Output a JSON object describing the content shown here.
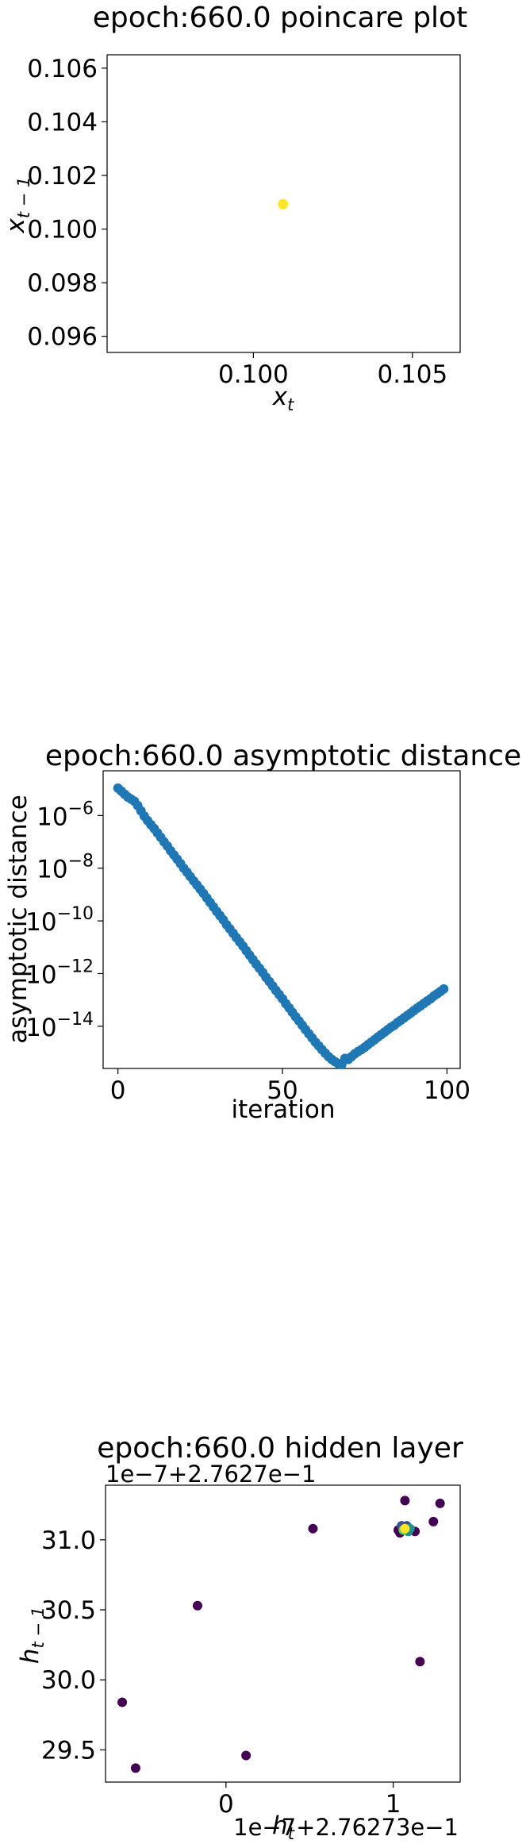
{
  "chart_data": [
    {
      "type": "scatter",
      "title": "epoch:660.0 poincare plot",
      "xlabel": "x",
      "xlabel_sub": "t",
      "ylabel": "x",
      "ylabel_sub": "t − 1",
      "xlim": [
        0.0954,
        0.1065
      ],
      "ylim": [
        0.0954,
        0.1065
      ],
      "x_ticks": [
        0.1,
        0.105
      ],
      "x_tick_labels": [
        "0.100",
        "0.105"
      ],
      "y_ticks": [
        0.096,
        0.098,
        0.1,
        0.102,
        0.104,
        0.106
      ],
      "y_tick_labels": [
        "0.096",
        "0.098",
        "0.100",
        "0.102",
        "0.104",
        "0.106"
      ],
      "color": "#fde725",
      "points": [
        {
          "x": 0.10093,
          "y": 0.10093
        }
      ]
    },
    {
      "type": "scatter",
      "title": "epoch:660.0 asymptotic distance",
      "xlabel": "iteration",
      "ylabel": "asymptotic distance",
      "y_scale": "log",
      "xlim": [
        -4.5,
        104
      ],
      "ylim": [
        2.5e-16,
        5e-05
      ],
      "x_ticks": [
        0,
        50,
        100
      ],
      "x_tick_labels": [
        "0",
        "50",
        "100"
      ],
      "y_tick_exponents": [
        -6,
        -8,
        -10,
        -12,
        -14
      ],
      "y_tick_base": "10",
      "color": "#1f77b4",
      "x": [
        0,
        1,
        2,
        3,
        4,
        5,
        6,
        7,
        8,
        9,
        10,
        11,
        12,
        13,
        14,
        15,
        16,
        17,
        18,
        19,
        20,
        21,
        22,
        23,
        24,
        25,
        26,
        27,
        28,
        29,
        30,
        31,
        32,
        33,
        34,
        35,
        36,
        37,
        38,
        39,
        40,
        41,
        42,
        43,
        44,
        45,
        46,
        47,
        48,
        49,
        50,
        51,
        52,
        53,
        54,
        55,
        56,
        57,
        58,
        59,
        60,
        61,
        62,
        63,
        64,
        65,
        66,
        67,
        68,
        69,
        70,
        71,
        72,
        73,
        74,
        75,
        76,
        77,
        78,
        79,
        80,
        81,
        82,
        83,
        84,
        85,
        86,
        87,
        88,
        89,
        90,
        91,
        92,
        93,
        94,
        95,
        96,
        97,
        98,
        99
      ],
      "y": [
        1.1e-05,
        8.5e-06,
        6.5e-06,
        5e-06,
        4.2e-06,
        3.5e-06,
        2.4e-06,
        1.5e-06,
        9.5e-07,
        6.5e-07,
        4.5e-07,
        3.2e-07,
        2.2e-07,
        1.5e-07,
        1e-07,
        7e-08,
        4.6e-08,
        3.2e-08,
        2.2e-08,
        1.5e-08,
        1e-08,
        7e-09,
        4.8e-09,
        3.3e-09,
        2.3e-09,
        1.6e-09,
        1.1e-09,
        7.5e-10,
        5e-10,
        3.4e-10,
        2.3e-10,
        1.6e-10,
        1.1e-10,
        7.2e-11,
        5e-11,
        3.4e-11,
        2.3e-11,
        1.6e-11,
        1.1e-11,
        7.4e-12,
        5e-12,
        3.4e-12,
        2.3e-12,
        1.6e-12,
        1.1e-12,
        7.2e-13,
        5e-13,
        3.4e-13,
        2.3e-13,
        1.6e-13,
        1.1e-13,
        7.2e-14,
        5e-14,
        3.4e-14,
        2.3e-14,
        1.6e-14,
        1.1e-14,
        7.5e-15,
        5.2e-15,
        3.6e-15,
        2.5e-15,
        1.8e-15,
        1.3e-15,
        9.5e-16,
        7e-16,
        5.5e-16,
        4.5e-16,
        3.8e-16,
        3.5e-16,
        6e-16,
        5.5e-16,
        7e-16,
        9e-16,
        1.1e-15,
        1.3e-15,
        1.6e-15,
        2e-15,
        2.5e-15,
        3.1e-15,
        3.9e-15,
        4.8e-15,
        6e-15,
        7.4e-15,
        9.2e-15,
        1.1e-14,
        1.4e-14,
        1.7e-14,
        2.1e-14,
        2.6e-14,
        3.2e-14,
        4e-14,
        4.9e-14,
        6e-14,
        7.4e-14,
        9.1e-14,
        1.1e-13,
        1.4e-13,
        1.7e-13,
        2.1e-13,
        2.6e-13
      ]
    },
    {
      "type": "scatter",
      "title": "epoch:660.0 hidden layer",
      "xlabel": "h",
      "xlabel_sub": "t",
      "ylabel": "h",
      "ylabel_sub": "t − 1",
      "x_offset_text": "1e−7+2.76273e−1",
      "y_offset_text": "1e−7+2.7627e−1",
      "xlim": [
        -0.72,
        1.4
      ],
      "ylim": [
        29.27,
        31.39
      ],
      "x_ticks": [
        0,
        1
      ],
      "x_tick_labels": [
        "0",
        "1"
      ],
      "y_ticks": [
        29.5,
        30.0,
        30.5,
        31.0
      ],
      "y_tick_labels": [
        "29.5",
        "30.0",
        "30.5",
        "31.0"
      ],
      "colormap": [
        "#440154",
        "#3b528b",
        "#21918c",
        "#5ec962",
        "#fde725"
      ],
      "points": [
        {
          "x": -0.62,
          "y": 29.84,
          "c": 0.0
        },
        {
          "x": -0.54,
          "y": 29.37,
          "c": 0.0
        },
        {
          "x": -0.17,
          "y": 30.53,
          "c": 0.0
        },
        {
          "x": 0.12,
          "y": 29.46,
          "c": 0.0
        },
        {
          "x": 0.52,
          "y": 31.08,
          "c": 0.0
        },
        {
          "x": 1.16,
          "y": 30.13,
          "c": 0.0
        },
        {
          "x": 1.28,
          "y": 31.26,
          "c": 0.0
        },
        {
          "x": 1.24,
          "y": 31.13,
          "c": 0.0
        },
        {
          "x": 1.07,
          "y": 31.28,
          "c": 0.0
        },
        {
          "x": 1.13,
          "y": 31.06,
          "c": 0.0
        },
        {
          "x": 1.04,
          "y": 31.05,
          "c": 0.0
        },
        {
          "x": 1.03,
          "y": 31.07,
          "c": 0.05
        },
        {
          "x": 1.05,
          "y": 31.1,
          "c": 0.15
        },
        {
          "x": 1.08,
          "y": 31.1,
          "c": 0.3
        },
        {
          "x": 1.1,
          "y": 31.08,
          "c": 0.45
        },
        {
          "x": 1.09,
          "y": 31.06,
          "c": 0.6
        },
        {
          "x": 1.06,
          "y": 31.07,
          "c": 0.8
        },
        {
          "x": 1.07,
          "y": 31.08,
          "c": 1.0
        }
      ]
    }
  ]
}
